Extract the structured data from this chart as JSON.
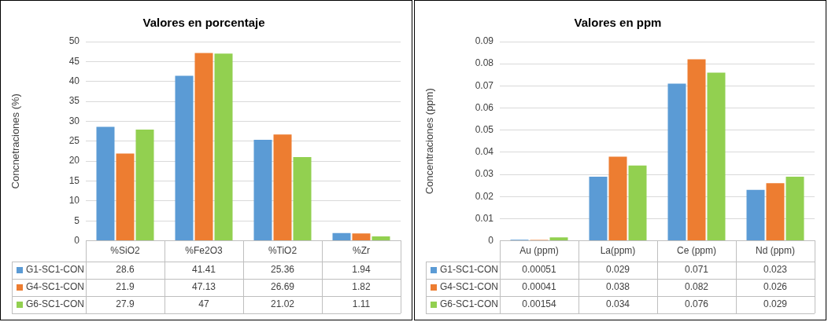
{
  "chart_data": [
    {
      "type": "bar",
      "title": "Valores en porcentaje",
      "ylabel": "Concnetraciones (%)",
      "categories": [
        "%SiO2",
        "%Fe2O3",
        "%TiO2",
        "%Zr"
      ],
      "series": [
        {
          "name": "G1-SC1-CON",
          "color": "#5b9bd5",
          "values": [
            28.6,
            41.41,
            25.36,
            1.94
          ]
        },
        {
          "name": "G4-SC1-CON",
          "color": "#ed7d31",
          "values": [
            21.9,
            47.13,
            26.69,
            1.82
          ]
        },
        {
          "name": "G6-SC1-CON",
          "color": "#92d050",
          "values": [
            27.9,
            47,
            21.02,
            1.11
          ]
        }
      ],
      "ylim": [
        0,
        50
      ],
      "yticks": [
        0,
        5,
        10,
        15,
        20,
        25,
        30,
        35,
        40,
        45,
        50
      ],
      "grid": "y",
      "legend": "bottom",
      "data_labels": true
    },
    {
      "type": "bar",
      "title": "Valores en ppm",
      "ylabel": "Concentraciones (ppm)",
      "categories": [
        "Au (ppm)",
        "La(ppm)",
        "Ce (ppm)",
        "Nd (ppm)"
      ],
      "series": [
        {
          "name": "G1-SC1-CON",
          "color": "#5b9bd5",
          "values": [
            0.00051,
            0.029,
            0.071,
            0.023
          ]
        },
        {
          "name": "G4-SC1-CON",
          "color": "#ed7d31",
          "values": [
            0.00041,
            0.038,
            0.082,
            0.026
          ]
        },
        {
          "name": "G6-SC1-CON",
          "color": "#92d050",
          "values": [
            0.00154,
            0.034,
            0.076,
            0.029
          ]
        }
      ],
      "ylim": [
        0,
        0.09
      ],
      "yticks": [
        0,
        0.01,
        0.02,
        0.03,
        0.04,
        0.05,
        0.06,
        0.07,
        0.08,
        0.09
      ],
      "grid": "y",
      "legend": "bottom",
      "data_labels": true
    }
  ]
}
